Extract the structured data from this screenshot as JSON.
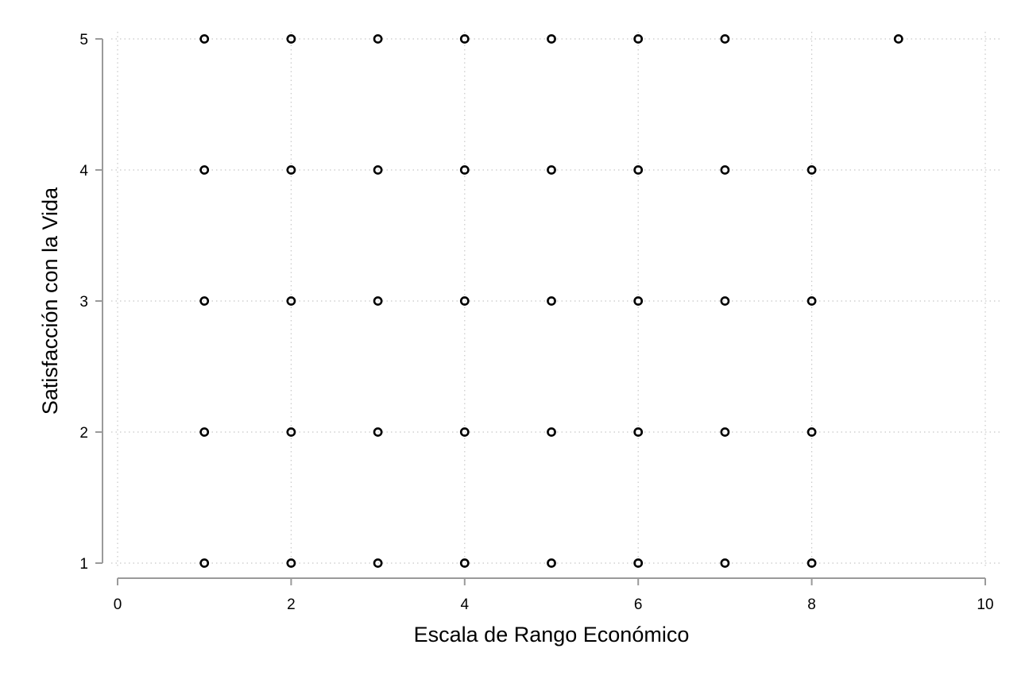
{
  "chart_data": {
    "type": "scatter",
    "title": "",
    "xlabel": "Escala de Rango Económico",
    "ylabel": "Satisfacción con la Vida",
    "xlim": [
      0,
      10
    ],
    "ylim": [
      1,
      5
    ],
    "xticks": [
      0,
      2,
      4,
      6,
      8,
      10
    ],
    "yticks": [
      1,
      2,
      3,
      4,
      5
    ],
    "x_tick_labels": [
      "0",
      "2",
      "4",
      "6",
      "8",
      "10"
    ],
    "y_tick_labels": [
      "1",
      "2",
      "3",
      "4",
      "5"
    ],
    "grid": true,
    "grid_style": "dotted",
    "legend": "none",
    "marker": "hollow-circle",
    "colors": {
      "marker": "#000000",
      "axis": "#9a9a9a",
      "grid": "#c8c8c8",
      "background": "#ffffff"
    },
    "points": [
      {
        "x": 1,
        "y": 1
      },
      {
        "x": 2,
        "y": 1
      },
      {
        "x": 3,
        "y": 1
      },
      {
        "x": 4,
        "y": 1
      },
      {
        "x": 5,
        "y": 1
      },
      {
        "x": 6,
        "y": 1
      },
      {
        "x": 7,
        "y": 1
      },
      {
        "x": 8,
        "y": 1
      },
      {
        "x": 1,
        "y": 2
      },
      {
        "x": 2,
        "y": 2
      },
      {
        "x": 3,
        "y": 2
      },
      {
        "x": 4,
        "y": 2
      },
      {
        "x": 5,
        "y": 2
      },
      {
        "x": 6,
        "y": 2
      },
      {
        "x": 7,
        "y": 2
      },
      {
        "x": 8,
        "y": 2
      },
      {
        "x": 1,
        "y": 3
      },
      {
        "x": 2,
        "y": 3
      },
      {
        "x": 3,
        "y": 3
      },
      {
        "x": 4,
        "y": 3
      },
      {
        "x": 5,
        "y": 3
      },
      {
        "x": 6,
        "y": 3
      },
      {
        "x": 7,
        "y": 3
      },
      {
        "x": 8,
        "y": 3
      },
      {
        "x": 1,
        "y": 4
      },
      {
        "x": 2,
        "y": 4
      },
      {
        "x": 3,
        "y": 4
      },
      {
        "x": 4,
        "y": 4
      },
      {
        "x": 5,
        "y": 4
      },
      {
        "x": 6,
        "y": 4
      },
      {
        "x": 7,
        "y": 4
      },
      {
        "x": 8,
        "y": 4
      },
      {
        "x": 1,
        "y": 5
      },
      {
        "x": 2,
        "y": 5
      },
      {
        "x": 3,
        "y": 5
      },
      {
        "x": 4,
        "y": 5
      },
      {
        "x": 5,
        "y": 5
      },
      {
        "x": 6,
        "y": 5
      },
      {
        "x": 7,
        "y": 5
      },
      {
        "x": 9,
        "y": 5
      }
    ]
  }
}
